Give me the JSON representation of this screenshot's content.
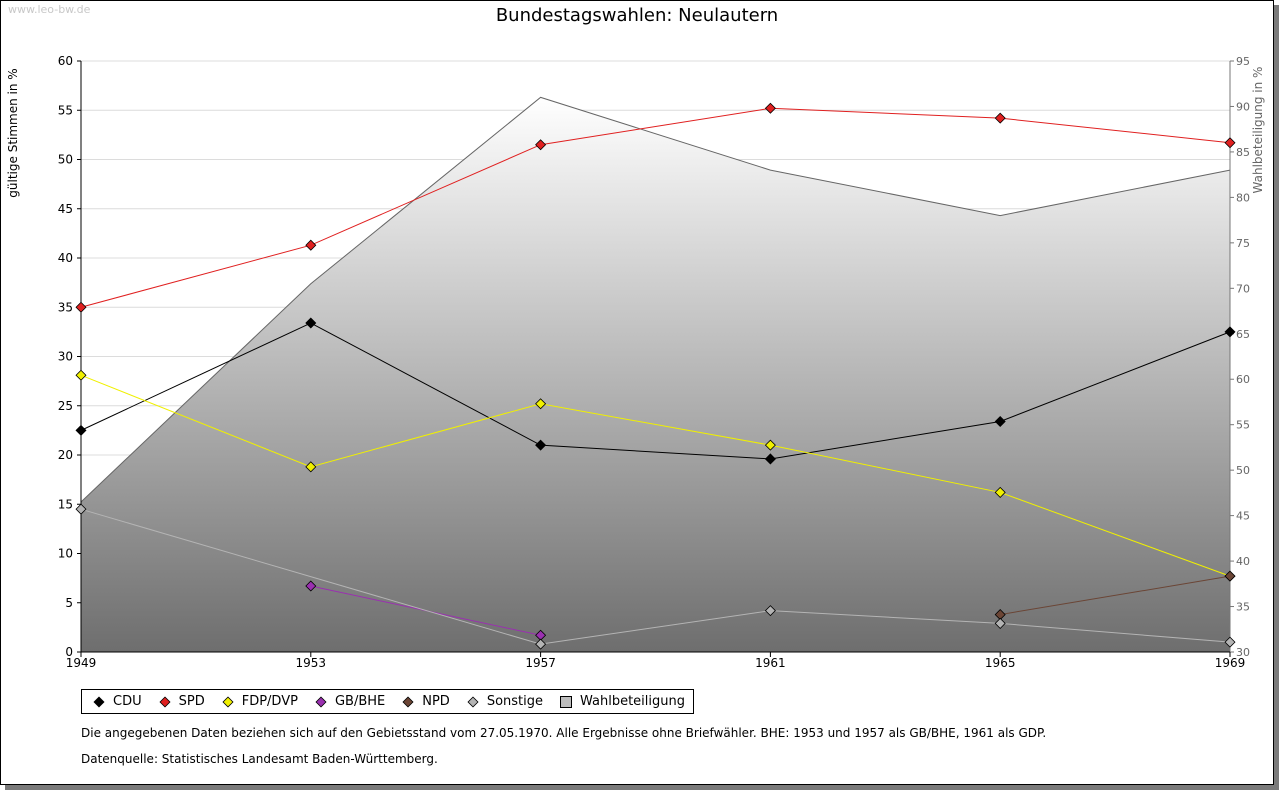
{
  "watermark": "www.leo-bw.de",
  "chart_data": {
    "type": "line",
    "title": "Bundestagswahlen: Neulautern",
    "ylabel": "gültige Stimmen in %",
    "y2label": "Wahlbeteiligung in %",
    "xlabel": "",
    "ylim": [
      0,
      60
    ],
    "y2lim": [
      30,
      95
    ],
    "yticks": [
      0,
      5,
      10,
      15,
      20,
      25,
      30,
      35,
      40,
      45,
      50,
      55,
      60
    ],
    "y2ticks": [
      30,
      35,
      40,
      45,
      50,
      55,
      60,
      65,
      70,
      75,
      80,
      85,
      90,
      95
    ],
    "x": [
      1949,
      1953,
      1957,
      1961,
      1965,
      1969
    ],
    "grid": true,
    "legend_position": "bottom",
    "area": {
      "name": "Wahlbeteiligung",
      "axis": "right",
      "values": [
        46.5,
        70.5,
        91.0,
        83.0,
        78.0,
        83.0
      ]
    },
    "series": [
      {
        "name": "CDU",
        "color": "#000000",
        "values": [
          22.5,
          33.4,
          21.0,
          19.6,
          23.4,
          32.5
        ]
      },
      {
        "name": "SPD",
        "color": "#e02020",
        "values": [
          35.0,
          41.3,
          51.5,
          55.2,
          54.2,
          51.7
        ]
      },
      {
        "name": "FDP/DVP",
        "color": "#f0f000",
        "values": [
          28.1,
          18.8,
          25.2,
          21.0,
          16.2,
          7.7
        ]
      },
      {
        "name": "GB/BHE",
        "color": "#9a30b0",
        "values": [
          null,
          6.7,
          1.7,
          null,
          null,
          null
        ]
      },
      {
        "name": "NPD",
        "color": "#6b4535",
        "values": [
          null,
          null,
          null,
          null,
          3.8,
          7.7
        ]
      },
      {
        "name": "Sonstige",
        "color": "#b4b4b4",
        "values": [
          14.5,
          null,
          0.8,
          4.2,
          2.9,
          1.0
        ]
      }
    ],
    "legend": [
      "CDU",
      "SPD",
      "FDP/DVP",
      "GB/BHE",
      "NPD",
      "Sonstige",
      "Wahlbeteiligung"
    ]
  },
  "notes": {
    "line1": "Die angegebenen Daten beziehen sich auf den Gebietsstand vom 27.05.1970. Alle Ergebnisse ohne Briefwähler. BHE: 1953 und 1957 als GB/BHE, 1961 als GDP.",
    "line2": "Datenquelle: Statistisches Landesamt Baden-Württemberg."
  }
}
